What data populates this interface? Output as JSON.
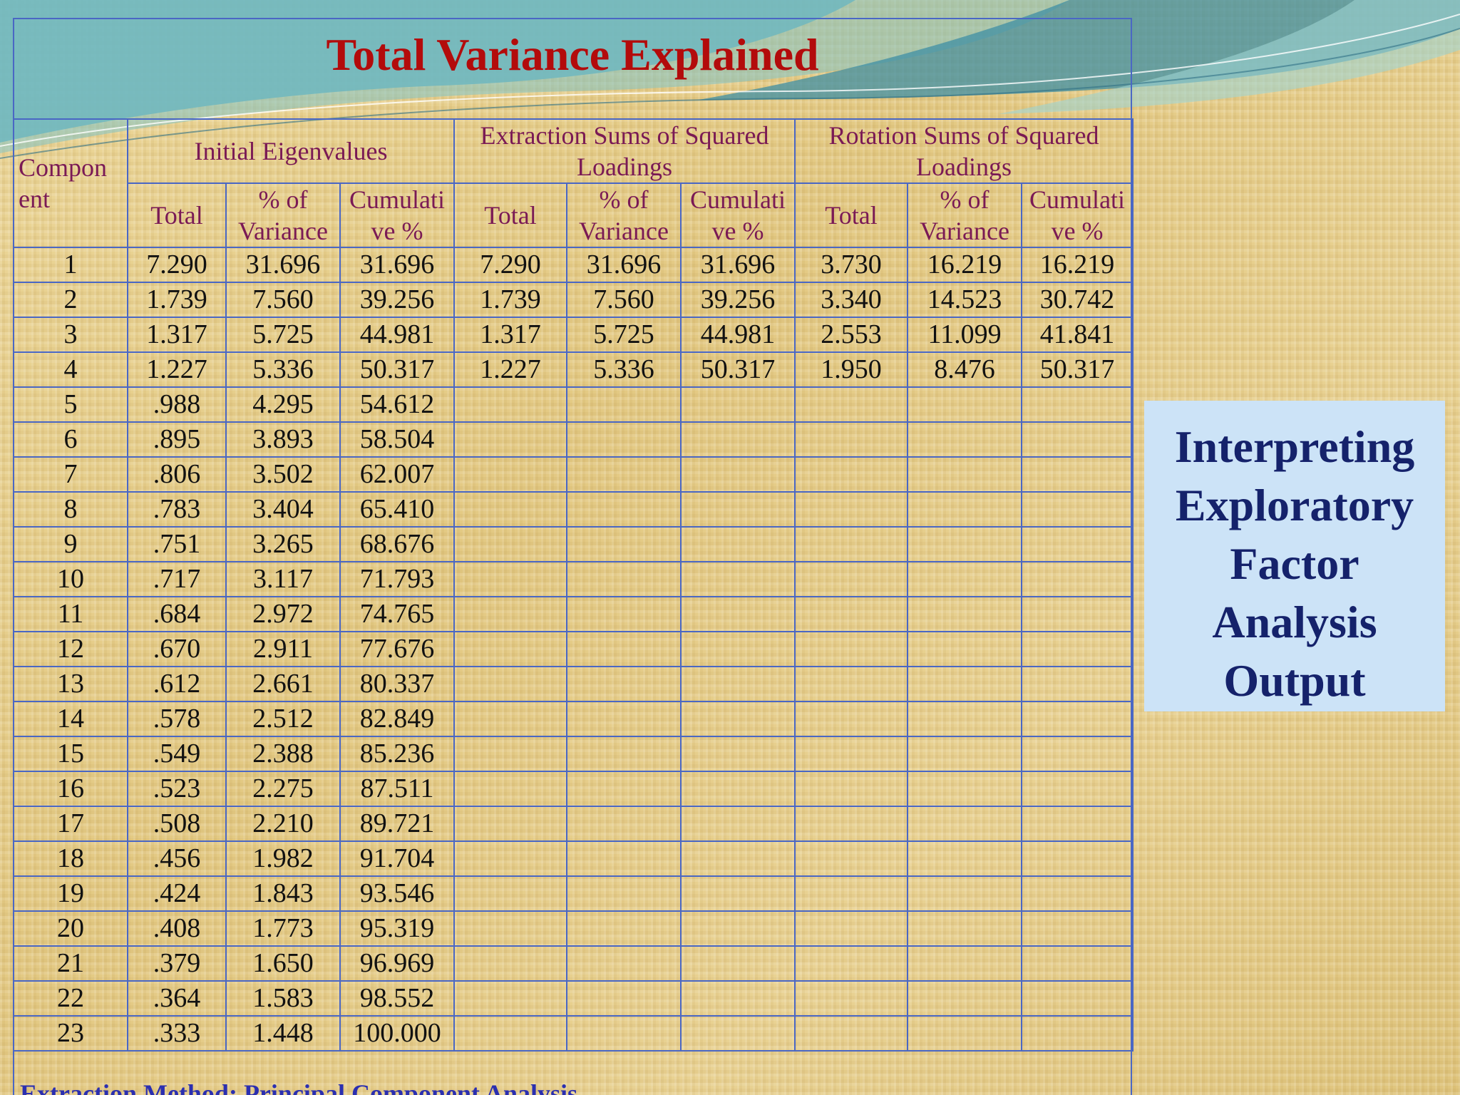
{
  "title": "Total Variance Explained",
  "side_box": {
    "lines": [
      "Interpreting",
      "Exploratory",
      "Factor",
      "Analysis",
      "Output"
    ]
  },
  "table": {
    "component_header_lines": [
      "Compon",
      "ent"
    ],
    "groups": [
      {
        "label": "Initial Eigenvalues"
      },
      {
        "label_lines": [
          "Extraction Sums of Squared",
          "Loadings"
        ]
      },
      {
        "label_lines": [
          "Rotation Sums of Squared",
          "Loadings"
        ]
      }
    ],
    "subheaders": [
      {
        "lines": [
          "Total"
        ]
      },
      {
        "lines": [
          "% of",
          "Variance"
        ]
      },
      {
        "lines": [
          "Cumulati",
          "ve %"
        ]
      },
      {
        "lines": [
          "Total"
        ]
      },
      {
        "lines": [
          "% of",
          "Variance"
        ]
      },
      {
        "lines": [
          "Cumulati",
          "ve %"
        ]
      },
      {
        "lines": [
          "Total"
        ]
      },
      {
        "lines": [
          "% of",
          "Variance"
        ]
      },
      {
        "lines": [
          "Cumulati",
          "ve %"
        ]
      }
    ],
    "rows": [
      [
        "1",
        "7.290",
        "31.696",
        "31.696",
        "7.290",
        "31.696",
        "31.696",
        "3.730",
        "16.219",
        "16.219"
      ],
      [
        "2",
        "1.739",
        "7.560",
        "39.256",
        "1.739",
        "7.560",
        "39.256",
        "3.340",
        "14.523",
        "30.742"
      ],
      [
        "3",
        "1.317",
        "5.725",
        "44.981",
        "1.317",
        "5.725",
        "44.981",
        "2.553",
        "11.099",
        "41.841"
      ],
      [
        "4",
        "1.227",
        "5.336",
        "50.317",
        "1.227",
        "5.336",
        "50.317",
        "1.950",
        "8.476",
        "50.317"
      ],
      [
        "5",
        ".988",
        "4.295",
        "54.612",
        "",
        "",
        "",
        "",
        "",
        ""
      ],
      [
        "6",
        ".895",
        "3.893",
        "58.504",
        "",
        "",
        "",
        "",
        "",
        ""
      ],
      [
        "7",
        ".806",
        "3.502",
        "62.007",
        "",
        "",
        "",
        "",
        "",
        ""
      ],
      [
        "8",
        ".783",
        "3.404",
        "65.410",
        "",
        "",
        "",
        "",
        "",
        ""
      ],
      [
        "9",
        ".751",
        "3.265",
        "68.676",
        "",
        "",
        "",
        "",
        "",
        ""
      ],
      [
        "10",
        ".717",
        "3.117",
        "71.793",
        "",
        "",
        "",
        "",
        "",
        ""
      ],
      [
        "11",
        ".684",
        "2.972",
        "74.765",
        "",
        "",
        "",
        "",
        "",
        ""
      ],
      [
        "12",
        ".670",
        "2.911",
        "77.676",
        "",
        "",
        "",
        "",
        "",
        ""
      ],
      [
        "13",
        ".612",
        "2.661",
        "80.337",
        "",
        "",
        "",
        "",
        "",
        ""
      ],
      [
        "14",
        ".578",
        "2.512",
        "82.849",
        "",
        "",
        "",
        "",
        "",
        ""
      ],
      [
        "15",
        ".549",
        "2.388",
        "85.236",
        "",
        "",
        "",
        "",
        "",
        ""
      ],
      [
        "16",
        ".523",
        "2.275",
        "87.511",
        "",
        "",
        "",
        "",
        "",
        ""
      ],
      [
        "17",
        ".508",
        "2.210",
        "89.721",
        "",
        "",
        "",
        "",
        "",
        ""
      ],
      [
        "18",
        ".456",
        "1.982",
        "91.704",
        "",
        "",
        "",
        "",
        "",
        ""
      ],
      [
        "19",
        ".424",
        "1.843",
        "93.546",
        "",
        "",
        "",
        "",
        "",
        ""
      ],
      [
        "20",
        ".408",
        "1.773",
        "95.319",
        "",
        "",
        "",
        "",
        "",
        ""
      ],
      [
        "21",
        ".379",
        "1.650",
        "96.969",
        "",
        "",
        "",
        "",
        "",
        ""
      ],
      [
        "22",
        ".364",
        "1.583",
        "98.552",
        "",
        "",
        "",
        "",
        "",
        ""
      ],
      [
        "23",
        ".333",
        "1.448",
        "100.000",
        "",
        "",
        "",
        "",
        "",
        ""
      ]
    ],
    "footnote": "Extraction Method: Principal Component Analysis."
  },
  "colors": {
    "title": "#b30b0b",
    "header_text": "#7a1a55",
    "grid": "#4a67c4",
    "side_box_bg": "#cce3f7",
    "side_box_text": "#15226b",
    "footnote": "#2b2fb0"
  }
}
